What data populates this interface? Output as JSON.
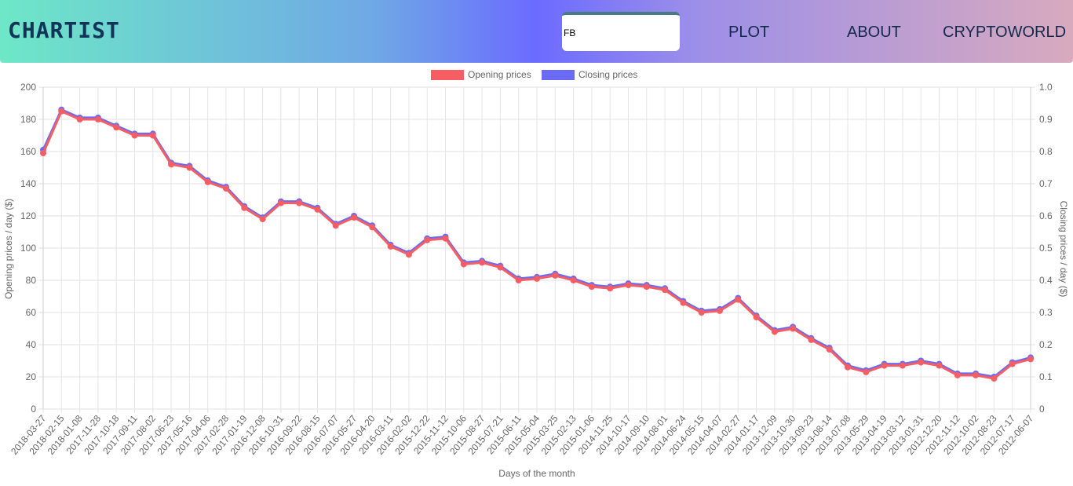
{
  "navbar": {
    "brand": "CHARTIST",
    "search_value": "FB",
    "links": [
      "PLOT",
      "ABOUT",
      "CRYPTOWORLD"
    ],
    "gradient": [
      "#6ee7c7",
      "#6fa8e6",
      "#6b6bff",
      "#9d8fe8",
      "#d8aabe"
    ]
  },
  "chart_data": {
    "type": "line",
    "xlabel": "Days of the month",
    "ylabel_left": "Opening prices / day ($)",
    "ylabel_right": "Closing prices / day ($)",
    "ylim_left": [
      0,
      200
    ],
    "ylim_right": [
      0,
      1.0
    ],
    "yticks_left": [
      0,
      20,
      40,
      60,
      80,
      100,
      120,
      140,
      160,
      180,
      200
    ],
    "yticks_right": [
      "0",
      "0.1",
      "0.2",
      "0.3",
      "0.4",
      "0.5",
      "0.6",
      "0.7",
      "0.8",
      "0.9",
      "1.0"
    ],
    "legend_position": "top-center",
    "grid": true,
    "categories": [
      "2018-03-27",
      "2018-02-15",
      "2018-01-08",
      "2017-11-28",
      "2017-10-18",
      "2017-09-11",
      "2017-08-02",
      "2017-06-23",
      "2017-05-16",
      "2017-04-06",
      "2017-02-28",
      "2017-01-19",
      "2016-12-08",
      "2016-10-31",
      "2016-09-22",
      "2016-08-15",
      "2016-07-07",
      "2016-05-27",
      "2016-04-20",
      "2016-03-11",
      "2016-02-02",
      "2015-12-22",
      "2015-11-12",
      "2015-10-06",
      "2015-08-27",
      "2015-07-21",
      "2015-06-11",
      "2015-05-04",
      "2015-03-25",
      "2015-02-13",
      "2015-01-06",
      "2014-11-25",
      "2014-10-17",
      "2014-09-10",
      "2014-08-01",
      "2014-06-24",
      "2014-05-15",
      "2014-04-07",
      "2014-02-27",
      "2014-01-17",
      "2013-12-09",
      "2013-10-30",
      "2013-09-23",
      "2013-08-14",
      "2013-07-08",
      "2013-05-29",
      "2013-04-19",
      "2013-03-12",
      "2013-01-31",
      "2012-12-20",
      "2012-11-12",
      "2012-10-02",
      "2012-08-23",
      "2012-07-17",
      "2012-06-07"
    ],
    "series": [
      {
        "name": "Opening prices",
        "color": "#f65e64",
        "values": [
          159,
          185,
          180,
          180,
          175,
          170,
          170,
          152,
          150,
          141,
          137,
          125,
          118,
          128,
          128,
          124,
          114,
          119,
          113,
          101,
          96,
          105,
          106,
          90,
          91,
          88,
          80,
          81,
          83,
          80,
          76,
          75,
          77,
          76,
          74,
          66,
          60,
          61,
          68,
          57,
          48,
          50,
          43,
          37,
          26,
          23,
          27,
          27,
          29,
          27,
          21,
          21,
          19,
          28,
          31
        ]
      },
      {
        "name": "Closing prices",
        "color": "#6b6bf5",
        "values": [
          161,
          186,
          181,
          181,
          176,
          171,
          171,
          153,
          151,
          142,
          138,
          126,
          119,
          129,
          129,
          125,
          115,
          120,
          114,
          102,
          97,
          106,
          107,
          91,
          92,
          89,
          81,
          82,
          84,
          81,
          77,
          76,
          78,
          77,
          75,
          67,
          61,
          62,
          69,
          58,
          49,
          51,
          44,
          38,
          27,
          24,
          28,
          28,
          30,
          28,
          22,
          22,
          20,
          29,
          32
        ]
      }
    ]
  }
}
